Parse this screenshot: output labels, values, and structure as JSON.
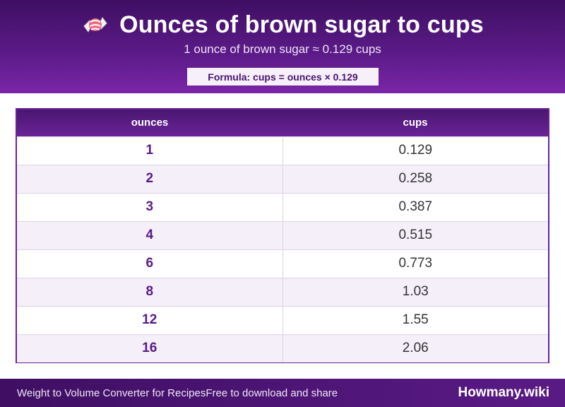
{
  "header": {
    "icon": "candy-icon",
    "title": "Ounces of brown sugar to cups",
    "subtitle": "1 ounce of brown sugar ≈ 0.129 cups",
    "formula": "Formula: cups = ounces × 0.129"
  },
  "table": {
    "columns": [
      "ounces",
      "cups"
    ],
    "rows": [
      {
        "ounces": "1",
        "cups": "0.129"
      },
      {
        "ounces": "2",
        "cups": "0.258"
      },
      {
        "ounces": "3",
        "cups": "0.387"
      },
      {
        "ounces": "4",
        "cups": "0.515"
      },
      {
        "ounces": "6",
        "cups": "0.773"
      },
      {
        "ounces": "8",
        "cups": "1.03"
      },
      {
        "ounces": "12",
        "cups": "1.55"
      },
      {
        "ounces": "16",
        "cups": "2.06"
      }
    ]
  },
  "footer": {
    "left": "Weight to Volume Converter for RecipesFree to download and share",
    "brand": "Howmany.wiki"
  },
  "colors": {
    "header_dark": "#3f0f63",
    "header_light": "#7a25a8",
    "accent": "#5a1a86",
    "stripe": "#f4eff9"
  }
}
